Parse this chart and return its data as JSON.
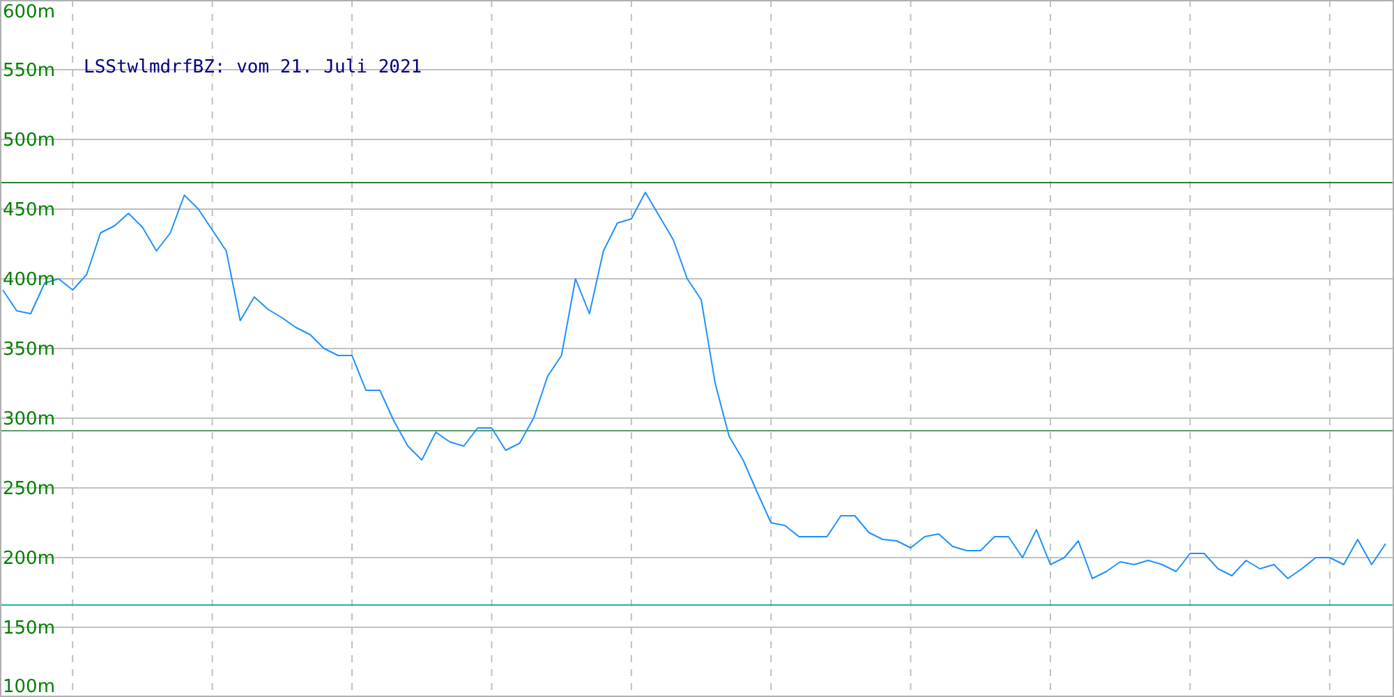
{
  "chart_data": {
    "type": "line",
    "title": "LSStwlmdrfBZ: vom 21. Juli 2021",
    "categories": [
      null,
      null,
      null,
      null,
      null,
      null,
      null,
      null,
      null,
      null,
      null,
      null,
      null,
      null,
      null,
      null,
      null,
      null,
      null,
      null,
      null,
      null,
      null,
      null,
      null,
      null,
      null,
      null,
      null,
      null,
      null,
      null,
      null,
      null,
      null,
      null,
      null,
      null,
      null,
      null,
      null,
      null,
      null,
      null,
      null,
      null,
      null,
      null,
      null,
      null,
      null,
      null,
      null,
      null,
      null,
      null,
      null,
      null,
      null,
      null,
      null,
      null,
      null,
      null,
      null,
      null,
      null,
      null,
      null,
      null,
      null,
      null,
      null,
      null,
      null,
      null,
      null,
      null,
      null,
      null,
      null,
      null,
      null,
      null,
      null,
      null,
      null,
      null,
      null,
      null,
      null,
      null,
      null,
      null,
      null,
      null,
      null,
      null,
      null,
      null
    ],
    "series": [
      {
        "color": "#1e90ff",
        "values": [
          392,
          377,
          375,
          397,
          400,
          392,
          403,
          433,
          438,
          447,
          437,
          420,
          433,
          460,
          450,
          435,
          420,
          370,
          387,
          378,
          372,
          365,
          360,
          350,
          345,
          345,
          320,
          320,
          298,
          280,
          270,
          290,
          283,
          280,
          293,
          293,
          277,
          282,
          300,
          330,
          345,
          400,
          375,
          420,
          440,
          443,
          462,
          445,
          428,
          400,
          385,
          325,
          287,
          270,
          247,
          225,
          223,
          215,
          215,
          215,
          230,
          230,
          218,
          213,
          212,
          207,
          215,
          217,
          208,
          205,
          205,
          215,
          215,
          200,
          220,
          195,
          200,
          212,
          185,
          190,
          197,
          195,
          198,
          195,
          190,
          203,
          203,
          192,
          187,
          198,
          192,
          195,
          185,
          192,
          200,
          200,
          195,
          213,
          195,
          210
        ]
      }
    ],
    "ylim": [
      100,
      600
    ],
    "yticks": [
      {
        "value": 100,
        "label": "100m"
      },
      {
        "value": 150,
        "label": "150m"
      },
      {
        "value": 200,
        "label": "200m"
      },
      {
        "value": 250,
        "label": "250m"
      },
      {
        "value": 300,
        "label": "300m"
      },
      {
        "value": 350,
        "label": "350m"
      },
      {
        "value": 400,
        "label": "400m"
      },
      {
        "value": 450,
        "label": "450m"
      },
      {
        "value": 500,
        "label": "500m"
      },
      {
        "value": 550,
        "label": "550m"
      },
      {
        "value": 600,
        "label": "600m"
      }
    ],
    "grid": true,
    "ref_lines": [
      {
        "axis": "y",
        "value": 469,
        "color": "#2e7d32"
      },
      {
        "axis": "y",
        "value": 291,
        "color": "#5a9e6a"
      },
      {
        "axis": "y",
        "value": 166,
        "color": "#20b2aa"
      }
    ]
  }
}
